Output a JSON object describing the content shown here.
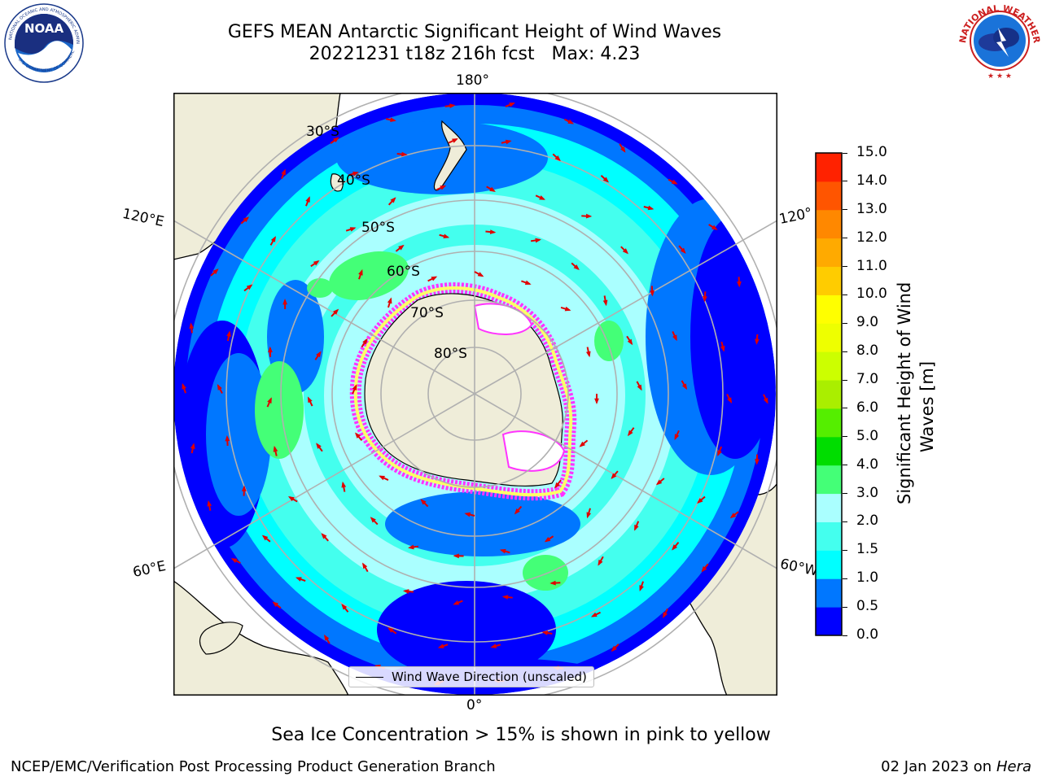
{
  "title": {
    "line1": "GEFS MEAN Antarctic Significant Height of Wind Waves",
    "line2": "20221231 t18z 216h fcst   Max: 4.23"
  },
  "logos": {
    "left": {
      "name": "noaa-logo",
      "text": "NOAA",
      "ring_text_top": "NATIONAL OCEANIC AND ATMOSPHERIC ADMINISTRATION",
      "ring_text_bottom": "U.S. DEPARTMENT OF COMMERCE"
    },
    "right": {
      "name": "nws-logo",
      "ring_text": "NATIONAL WEATHER SERVICE"
    }
  },
  "map": {
    "projection": "south-polar-stereographic",
    "longitude_labels": [
      "180°",
      "120°E",
      "120°",
      "60°E",
      "60°W",
      "0°"
    ],
    "latitude_labels": [
      "30°S",
      "40°S",
      "50°S",
      "60°S",
      "70°S",
      "80°S"
    ],
    "colors": {
      "land": "#efedd9",
      "ice_pink": "#ff33ff",
      "ice_yellow": "#ffff66",
      "arrow": "#e00000",
      "grid": "#b0b0b0"
    }
  },
  "legend": {
    "label": "Wind Wave Direction (unscaled)"
  },
  "colorbar": {
    "label_line1": "Significant Height of Wind",
    "label_line2": "Waves [m]",
    "ticks": [
      "0.0",
      "0.5",
      "1.0",
      "1.5",
      "2.0",
      "3.0",
      "4.0",
      "5.0",
      "6.0",
      "7.0",
      "8.0",
      "9.0",
      "10.0",
      "11.0",
      "12.0",
      "13.0",
      "14.0",
      "15.0"
    ],
    "colors": [
      "#0000ff",
      "#0077ff",
      "#00ffff",
      "#44ffee",
      "#aaffff",
      "#44ff77",
      "#00dd00",
      "#55ee00",
      "#aaee00",
      "#ccff00",
      "#eeff00",
      "#ffff00",
      "#ffcc00",
      "#ffaa00",
      "#ff8800",
      "#ff5500",
      "#ff2200"
    ]
  },
  "note": "Sea Ice Concentration > 15% is shown in pink to yellow",
  "footer": {
    "left": "NCEP/EMC/Verification Post Processing Product Generation Branch",
    "date": "02 Jan 2023 on ",
    "host": "Hera"
  }
}
